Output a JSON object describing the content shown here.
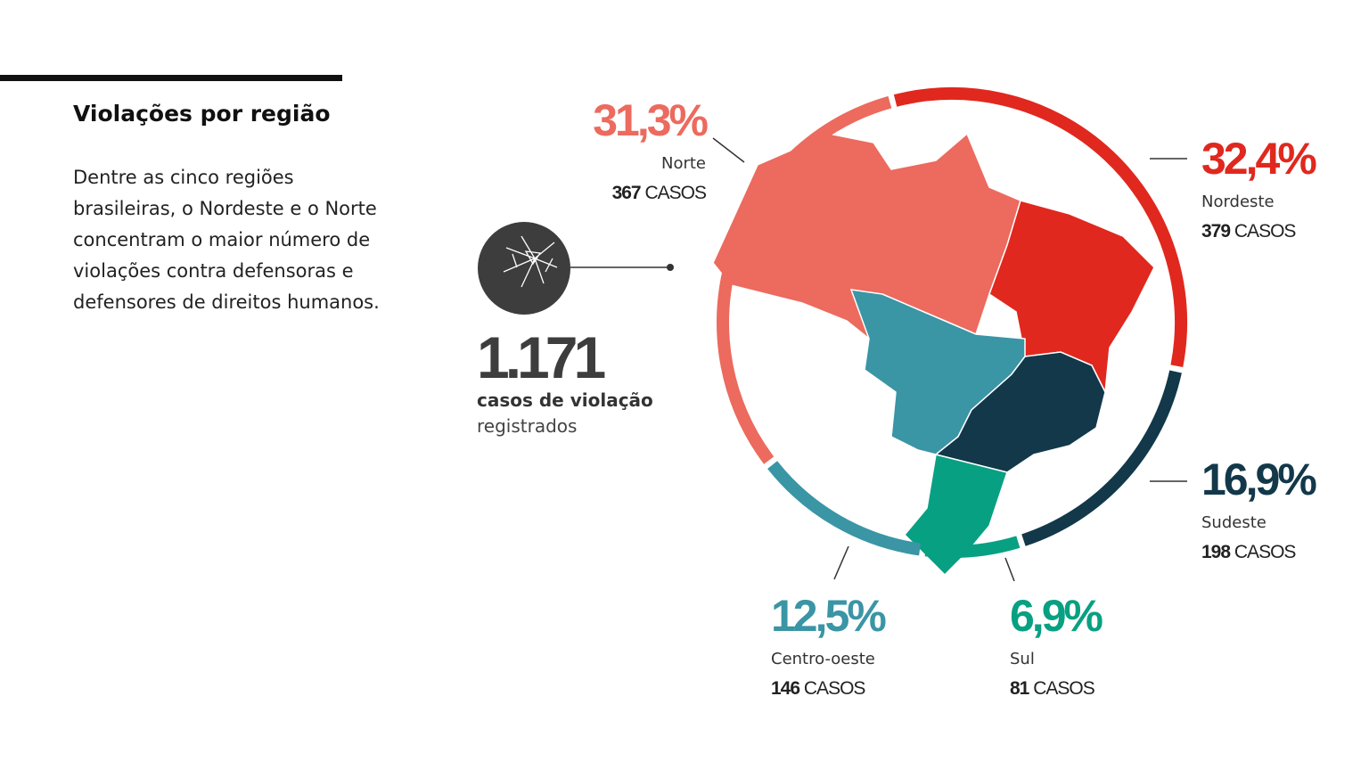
{
  "heading": "Violações por região",
  "body": [
    "Dentre as cinco regiões",
    "brasileiras, o Nordeste e o Norte",
    "concentram o maior número de",
    "violações contra defensoras e",
    "defensores de direitos humanos."
  ],
  "total": {
    "label": "1.171",
    "line1": "casos de violação",
    "line2": "registrados"
  },
  "chart_data": {
    "type": "donut",
    "categories": [
      "Nordeste",
      "Sudeste",
      "Sul",
      "Centro-oeste",
      "Norte"
    ],
    "values": [
      32.4,
      16.9,
      6.9,
      12.5,
      31.3
    ],
    "value_labels": [
      "32,4%",
      "16,9%",
      "6,9%",
      "12,5%",
      "31,3%"
    ],
    "cases": [
      379,
      198,
      81,
      146,
      367
    ],
    "cases_word": "CASOS",
    "colors": [
      "#e0281e",
      "#12384a",
      "#08a082",
      "#3a95a5",
      "#ec6a5e"
    ]
  }
}
